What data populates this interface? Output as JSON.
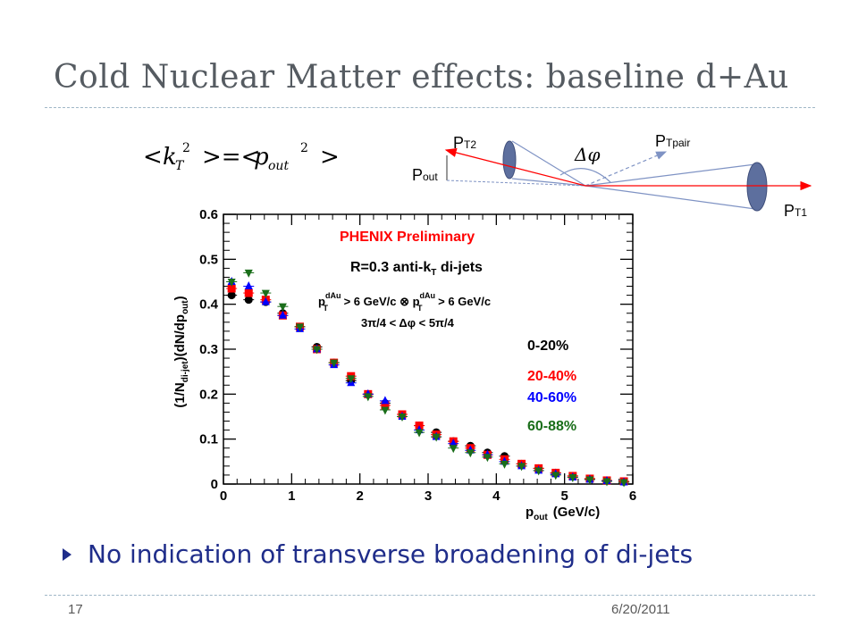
{
  "slide": {
    "title": "Cold Nuclear Matter effects: baseline d+Au",
    "bullet": "No indication of transverse broadening of di-jets",
    "page_number": "17",
    "date": "6/20/2011"
  },
  "equation": {
    "text": "<kT^2> = <pout^2>"
  },
  "diagram": {
    "labels": {
      "pt2": "P",
      "pt2_sub": "T2",
      "pout": "P",
      "pout_sub": "out",
      "ptpair": "P",
      "ptpair_sub": "Tpair",
      "pt1": "P",
      "pt1_sub": "T1",
      "dphi": "Δφ"
    }
  },
  "colors": {
    "title": "#555b61",
    "bullet": "#1f2d8a",
    "red": "#ff0000",
    "blue": "#0000ff",
    "green": "#1a6e1a",
    "black": "#000000"
  },
  "chart_data": {
    "type": "scatter",
    "xlabel_main": "p",
    "xlabel_sub": "out",
    "xlabel_unit": "(GeV/c)",
    "ylabel_a": "(1/N",
    "ylabel_sub": "di-jet",
    "ylabel_b": ")(dN/dp",
    "ylabel_sub2": "out",
    "ylabel_c": ")",
    "xlim": [
      0,
      6
    ],
    "ylim": [
      0,
      0.6
    ],
    "xticks": [
      "0",
      "1",
      "2",
      "3",
      "4",
      "5",
      "6"
    ],
    "yticks": [
      "0",
      "0.1",
      "0.2",
      "0.3",
      "0.4",
      "0.5",
      "0.6"
    ],
    "annotations": {
      "preliminary": "PHENIX Preliminary",
      "algo": "R=0.3 anti-k",
      "algo_sub": "T",
      "algo_end": " di-jets",
      "cut_p": "p",
      "cut_sup": "dAu",
      "cut_sub": "T",
      "cut_text": " > 6 GeV/c ⊗ ",
      "cut_p2": "p",
      "cut_sup2": "dAu",
      "cut_sub2": "T",
      "cut_text2": " > 6 GeV/c",
      "dphi_cut": "3π/4 < Δφ < 5π/4"
    },
    "series": [
      {
        "name": "0-20%",
        "color": "#000000",
        "marker": "circle",
        "x": [
          0.12,
          0.37,
          0.62,
          0.87,
          1.12,
          1.37,
          1.62,
          1.87,
          2.12,
          2.37,
          2.62,
          2.87,
          3.12,
          3.37,
          3.62,
          3.87,
          4.12,
          4.37,
          4.62,
          4.87,
          5.12,
          5.37,
          5.62,
          5.87
        ],
        "y": [
          0.42,
          0.41,
          0.405,
          0.38,
          0.35,
          0.305,
          0.27,
          0.23,
          0.2,
          0.18,
          0.155,
          0.13,
          0.115,
          0.095,
          0.085,
          0.07,
          0.062,
          0.045,
          0.035,
          0.025,
          0.018,
          0.012,
          0.008,
          0.005
        ]
      },
      {
        "name": "20-40%",
        "color": "#ff0000",
        "marker": "square",
        "x": [
          0.12,
          0.37,
          0.62,
          0.87,
          1.12,
          1.37,
          1.62,
          1.87,
          2.12,
          2.37,
          2.62,
          2.87,
          3.12,
          3.37,
          3.62,
          3.87,
          4.12,
          4.37,
          4.62,
          4.87,
          5.12,
          5.37,
          5.62,
          5.87
        ],
        "y": [
          0.435,
          0.425,
          0.41,
          0.375,
          0.35,
          0.3,
          0.27,
          0.24,
          0.2,
          0.175,
          0.155,
          0.13,
          0.11,
          0.095,
          0.08,
          0.065,
          0.055,
          0.045,
          0.035,
          0.025,
          0.018,
          0.012,
          0.008,
          0.006
        ]
      },
      {
        "name": "40-60%",
        "color": "#0000ff",
        "marker": "triangle",
        "x": [
          0.12,
          0.37,
          0.62,
          0.87,
          1.12,
          1.37,
          1.62,
          1.87,
          2.12,
          2.37,
          2.62,
          2.87,
          3.12,
          3.37,
          3.62,
          3.87,
          4.12,
          4.37,
          4.62,
          4.87,
          5.12,
          5.37,
          5.62,
          5.87
        ],
        "y": [
          0.45,
          0.44,
          0.405,
          0.375,
          0.345,
          0.3,
          0.265,
          0.225,
          0.2,
          0.185,
          0.15,
          0.12,
          0.105,
          0.09,
          0.075,
          0.065,
          0.05,
          0.04,
          0.03,
          0.022,
          0.015,
          0.01,
          0.007,
          0.004
        ]
      },
      {
        "name": "60-88%",
        "color": "#1a6e1a",
        "marker": "triangle-down",
        "x": [
          0.12,
          0.37,
          0.62,
          0.87,
          1.12,
          1.37,
          1.62,
          1.87,
          2.12,
          2.37,
          2.62,
          2.87,
          3.12,
          3.37,
          3.62,
          3.87,
          4.12,
          4.37,
          4.62,
          4.87,
          5.12,
          5.37,
          5.62,
          5.87
        ],
        "y": [
          0.45,
          0.47,
          0.425,
          0.395,
          0.35,
          0.3,
          0.27,
          0.235,
          0.195,
          0.165,
          0.15,
          0.115,
          0.105,
          0.08,
          0.07,
          0.06,
          0.045,
          0.04,
          0.03,
          0.02,
          0.015,
          0.01,
          0.006,
          0.004
        ]
      }
    ]
  }
}
